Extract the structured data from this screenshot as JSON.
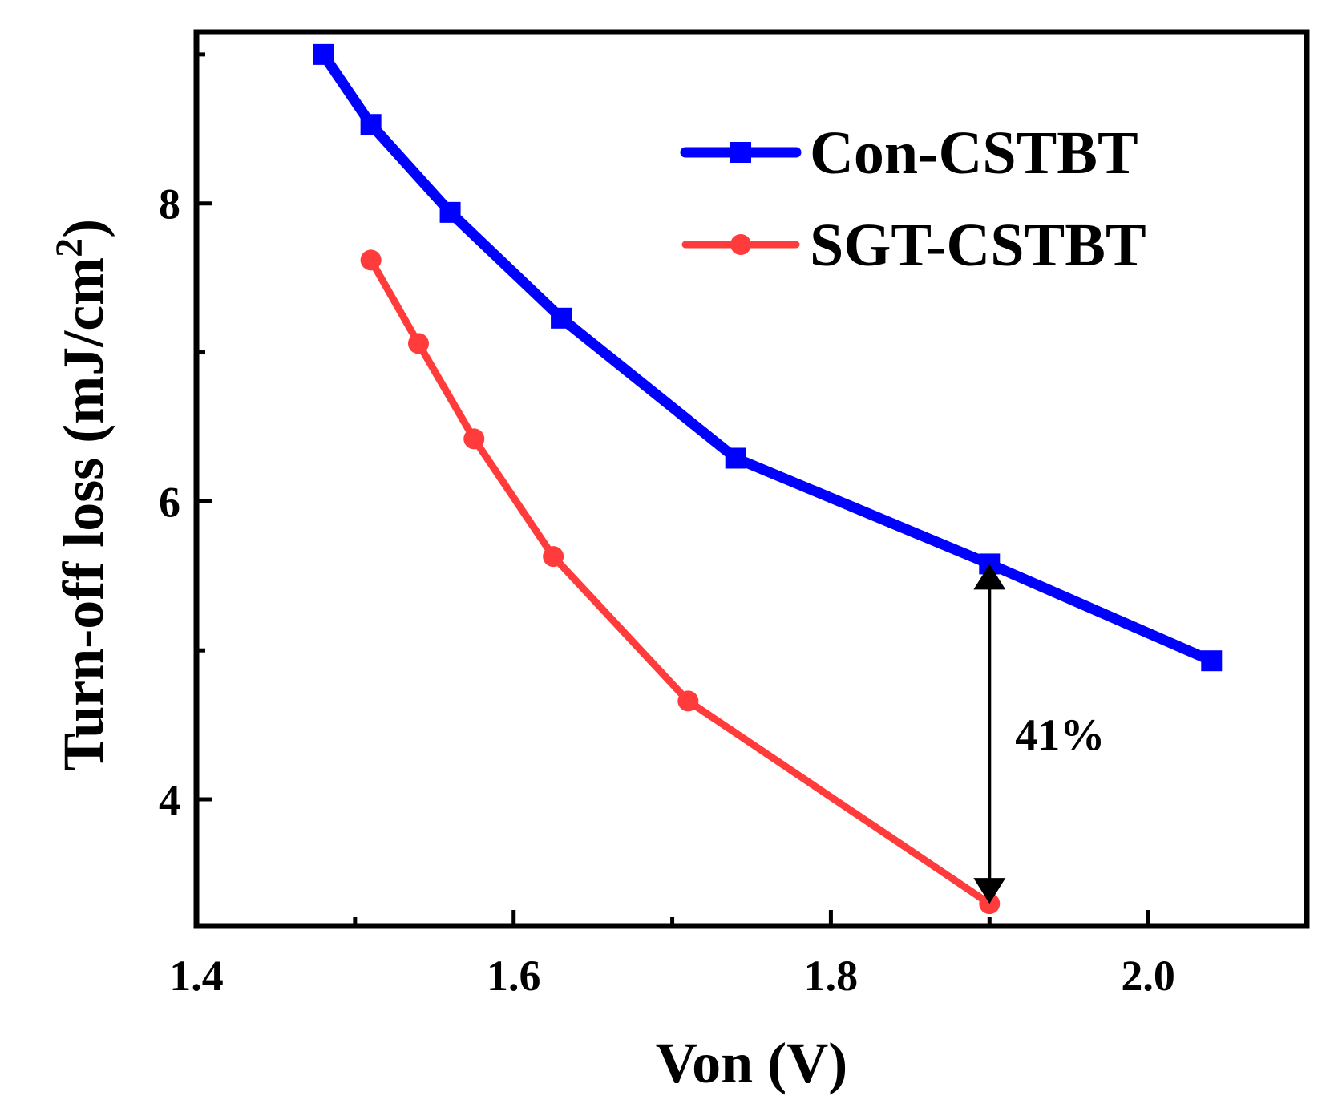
{
  "chart_data": {
    "type": "line",
    "title": "",
    "xlabel": "Von (V)",
    "ylabel": "Turn-off loss (mJ/cm",
    "ylabel_superscript": "2",
    "ylabel_close": ")",
    "xlim": [
      1.4,
      2.1
    ],
    "ylim": [
      3.15,
      9.15
    ],
    "x_ticks": [
      1.4,
      1.6,
      1.8,
      2.0
    ],
    "x_tick_labels": [
      "1.4",
      "1.6",
      "1.8",
      "2.0"
    ],
    "x_minor_ticks": [
      1.5,
      1.7,
      1.9
    ],
    "y_ticks": [
      4,
      6,
      8
    ],
    "y_tick_labels": [
      "4",
      "6",
      "8"
    ],
    "y_minor_ticks": [
      5,
      7,
      9
    ],
    "grid": false,
    "legend_position": "top-right",
    "series": [
      {
        "name": "Con-CSTBT",
        "color": "#0000ff",
        "marker": "square",
        "x": [
          1.48,
          1.51,
          1.56,
          1.63,
          1.74,
          1.9,
          2.04
        ],
        "y": [
          9.0,
          8.53,
          7.94,
          7.23,
          6.29,
          5.58,
          4.93
        ]
      },
      {
        "name": "SGT-CSTBT",
        "color": "#ff3b3b",
        "marker": "circle",
        "x": [
          1.51,
          1.54,
          1.575,
          1.625,
          1.71,
          1.9
        ],
        "y": [
          7.62,
          7.06,
          6.42,
          5.63,
          4.66,
          3.3
        ]
      }
    ],
    "annotations": [
      {
        "text": "41%",
        "type": "double-arrow",
        "x": 1.9,
        "y_from": 3.3,
        "y_to": 5.58
      }
    ]
  }
}
